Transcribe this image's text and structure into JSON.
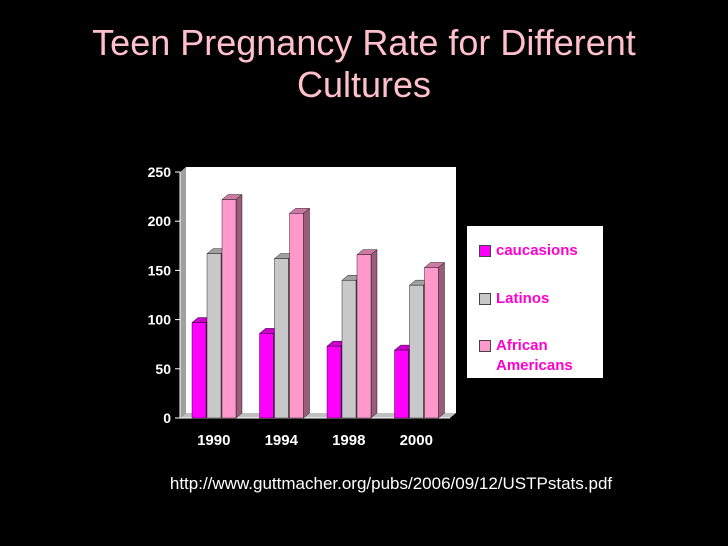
{
  "title": {
    "line1": "Teen Pregnancy Rate for Different",
    "line2": "Cultures"
  },
  "source": "http://www.guttmacher.org/pubs/2006/09/12/USTPstats.pdf",
  "legend": [
    {
      "label": "caucasions",
      "color": "#ff00ff"
    },
    {
      "label": "Latinos",
      "color": "#c8c8c8"
    },
    {
      "label_line1": "African",
      "label_line2": "Americans",
      "color": "#ff99cc"
    }
  ],
  "chart_data": {
    "type": "bar",
    "categories": [
      "1990",
      "1994",
      "1998",
      "2000"
    ],
    "series": [
      {
        "name": "caucasions",
        "values": [
          97,
          86,
          73,
          69
        ],
        "color": "#ff00ff"
      },
      {
        "name": "Latinos",
        "values": [
          167,
          162,
          140,
          135
        ],
        "color": "#c8c8c8"
      },
      {
        "name": "African Americans",
        "values": [
          222,
          208,
          166,
          153
        ],
        "color": "#ff99cc"
      }
    ],
    "ylim": [
      0,
      250
    ],
    "yticks": [
      "0",
      "50",
      "100",
      "150",
      "200",
      "250"
    ],
    "legend_position": "right",
    "grid": false,
    "style": "3d-clustered-column"
  }
}
